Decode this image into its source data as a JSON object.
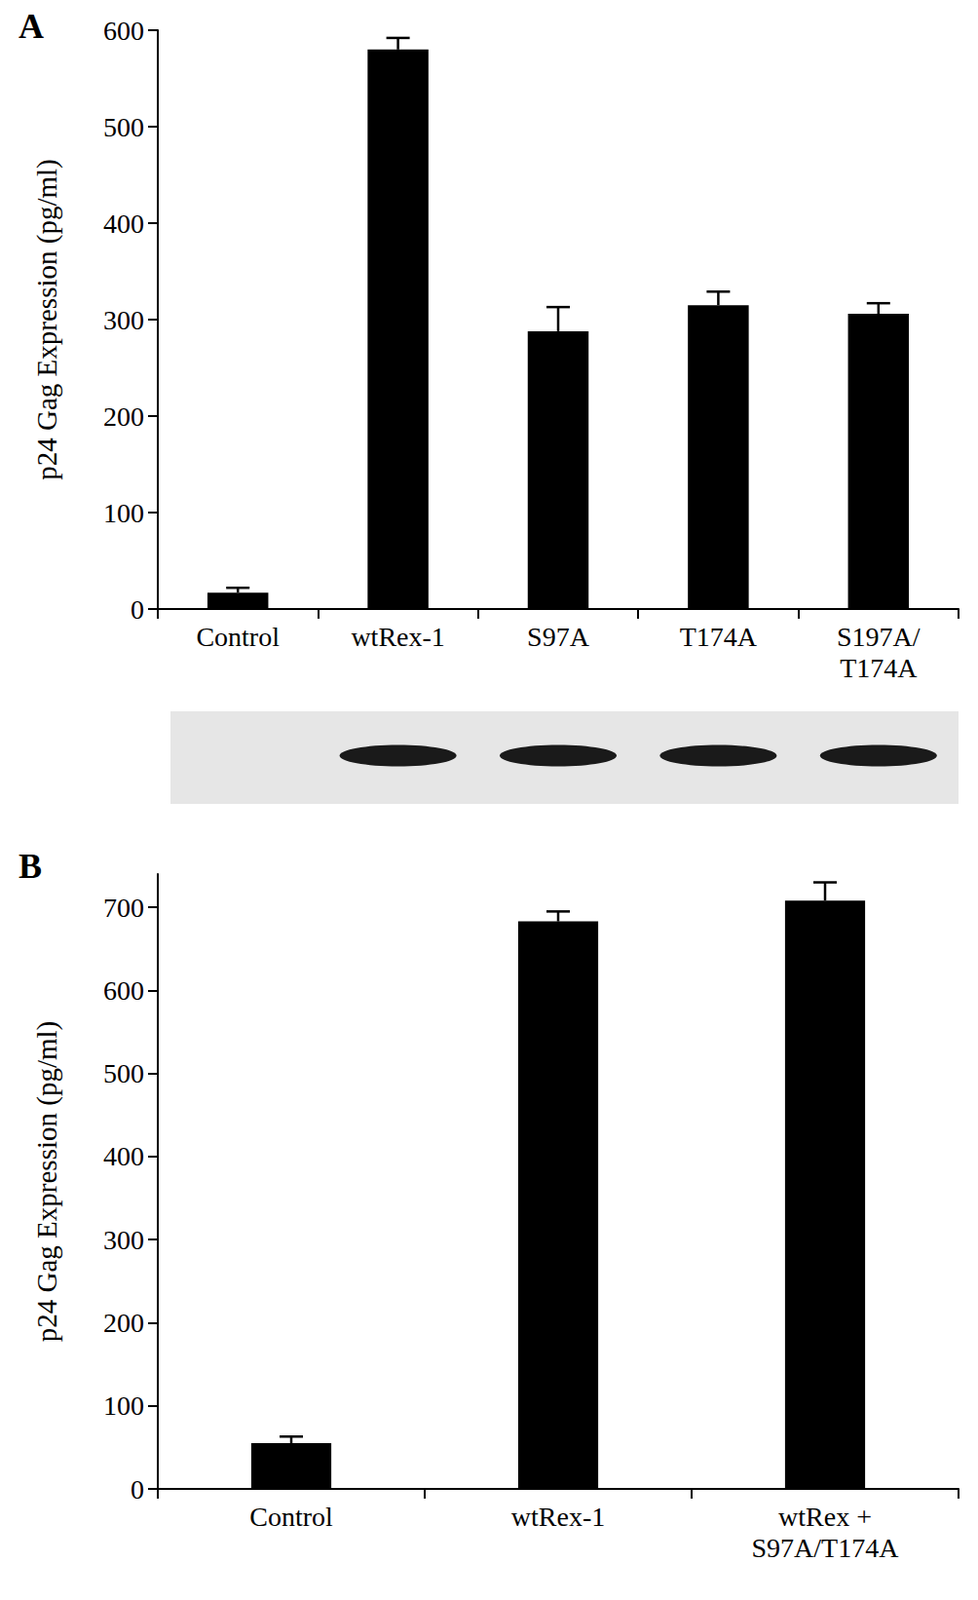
{
  "chart_data": [
    {
      "type": "bar",
      "title": "A",
      "ylabel": "p24 Gag Expression (pg/ml)",
      "categories": [
        "Control",
        "wtRex-1",
        "S97A",
        "T174A",
        "S197A/T174A"
      ],
      "values": [
        17,
        580,
        288,
        315,
        306
      ],
      "error": [
        5,
        12,
        25,
        14,
        11
      ],
      "color": "#000000",
      "ylim": [
        0,
        600
      ],
      "yticks": [
        0,
        100,
        200,
        300,
        400,
        500,
        600
      ],
      "grid": false
    },
    {
      "type": "bar",
      "title": "B",
      "ylabel": "p24 Gag Expression (pg/ml)",
      "categories": [
        "Control",
        "wtRex-1",
        "wtRex + S97A/T174A"
      ],
      "values": [
        55,
        683,
        708
      ],
      "error": [
        8,
        12,
        22
      ],
      "color": "#000000",
      "ylim": [
        0,
        740
      ],
      "yticks": [
        0,
        100,
        200,
        300,
        400,
        500,
        600,
        700
      ],
      "grid": false
    }
  ]
}
